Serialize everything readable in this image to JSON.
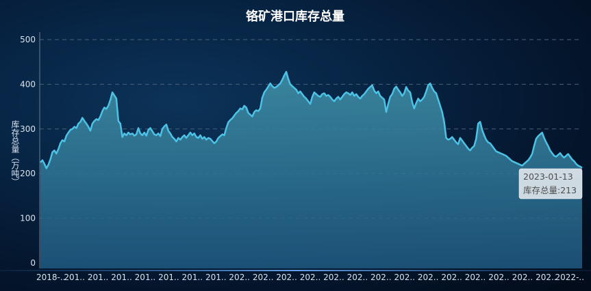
{
  "chart_data": {
    "type": "area",
    "title": "铬矿港口库存总量",
    "ylabel": "库存总量（万吨）",
    "xlabel": "",
    "ylim": [
      0,
      520
    ],
    "yticks": [
      0,
      100,
      200,
      300,
      400,
      500
    ],
    "x_tick_labels": [
      "2018-...",
      "201...",
      "201...",
      "201...",
      "201...",
      "201...",
      "201...",
      "201...",
      "202...",
      "202...",
      "202...",
      "202...",
      "202...",
      "202...",
      "202...",
      "202...",
      "202...",
      "202...",
      "202...",
      "202...",
      "202...",
      "202...",
      "2022-..."
    ],
    "grid": true,
    "colors": {
      "line": "#4cc3e6",
      "area_top": "#3f8fa6",
      "area_bottom": "#1f5a82"
    },
    "series": [
      {
        "name": "库存总量",
        "values": [
          225,
          230,
          222,
          212,
          220,
          232,
          248,
          252,
          245,
          255,
          268,
          275,
          272,
          285,
          292,
          298,
          300,
          305,
          302,
          312,
          316,
          325,
          318,
          312,
          305,
          296,
          312,
          318,
          322,
          320,
          328,
          340,
          348,
          345,
          352,
          365,
          382,
          375,
          368,
          318,
          312,
          282,
          290,
          286,
          292,
          288,
          290,
          285,
          288,
          302,
          290,
          286,
          292,
          285,
          298,
          302,
          295,
          288,
          286,
          290,
          284,
          300,
          306,
          310,
          296,
          290,
          282,
          278,
          272,
          280,
          276,
          282,
          286,
          280,
          286,
          292,
          286,
          290,
          282,
          280,
          286,
          278,
          282,
          276,
          280,
          278,
          273,
          268,
          272,
          280,
          284,
          288,
          286,
          302,
          315,
          320,
          324,
          330,
          336,
          340,
          346,
          344,
          352,
          348,
          336,
          332,
          328,
          338,
          342,
          340,
          346,
          370,
          382,
          388,
          395,
          402,
          396,
          392,
          394,
          398,
          402,
          410,
          420,
          428,
          412,
          400,
          396,
          392,
          388,
          380,
          384,
          378,
          372,
          368,
          362,
          356,
          372,
          382,
          378,
          374,
          372,
          378,
          380,
          374,
          376,
          372,
          366,
          362,
          368,
          372,
          366,
          372,
          378,
          382,
          380,
          376,
          382,
          374,
          378,
          372,
          368,
          374,
          378,
          384,
          390,
          394,
          398,
          386,
          380,
          384,
          374,
          370,
          366,
          338,
          356,
          372,
          378,
          390,
          395,
          388,
          382,
          374,
          380,
          394,
          386,
          382,
          360,
          346,
          358,
          368,
          362,
          366,
          372,
          384,
          398,
          402,
          392,
          384,
          380,
          366,
          352,
          338,
          316,
          280,
          276,
          278,
          282,
          276,
          270,
          266,
          280,
          274,
          268,
          262,
          256,
          252,
          258,
          262,
          278,
          312,
          316,
          298,
          286,
          276,
          270,
          268,
          262,
          256,
          250,
          248,
          246,
          244,
          242,
          240,
          236,
          232,
          228,
          226,
          224,
          222,
          220,
          218,
          222,
          226,
          230,
          236,
          244,
          262,
          278,
          284,
          288,
          292,
          280,
          270,
          262,
          252,
          246,
          240,
          238,
          242,
          246,
          240,
          236,
          240,
          244,
          238,
          232,
          228,
          222,
          218,
          216,
          213
        ]
      }
    ],
    "tooltip": {
      "date": "2023-01-13",
      "label": "库存总量:213"
    }
  }
}
